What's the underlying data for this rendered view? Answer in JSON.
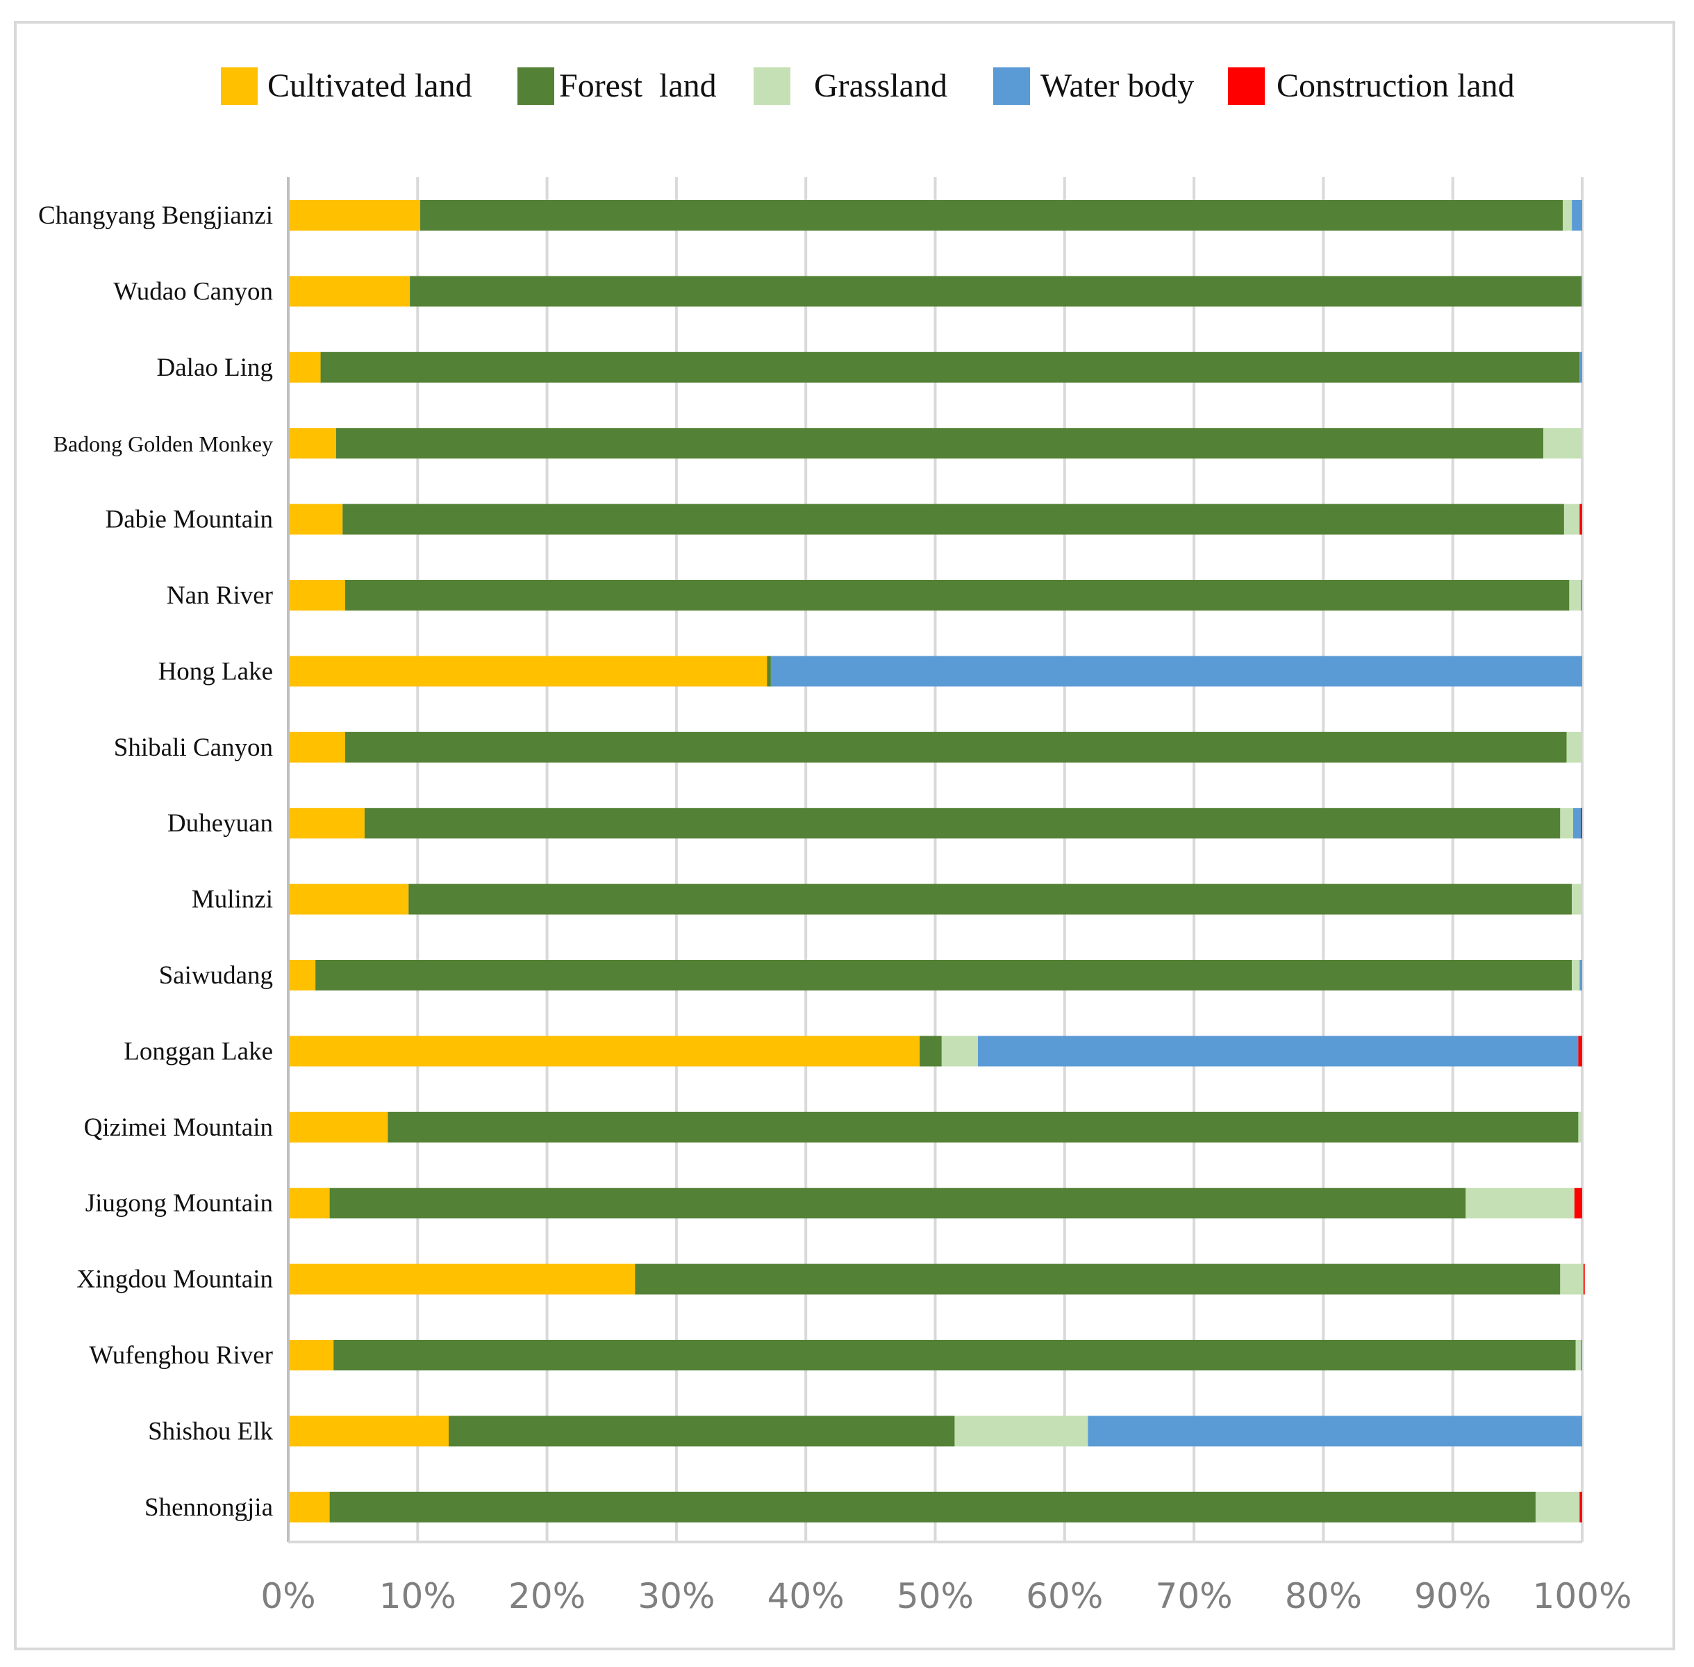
{
  "chart_data": {
    "type": "bar",
    "orientation": "horizontal",
    "stacked": true,
    "normalized": true,
    "title": "",
    "xlabel": "",
    "ylabel": "",
    "xlim": [
      0,
      100
    ],
    "x_ticks": [
      "0%",
      "10%",
      "20%",
      "30%",
      "40%",
      "50%",
      "60%",
      "70%",
      "80%",
      "90%",
      "100%"
    ],
    "grid": true,
    "legend_position": "top",
    "categories": [
      "Changyang Bengjianzi",
      "Wudao Canyon",
      "Dalao Ling",
      "Badong Golden Monkey",
      "Dabie Mountain",
      "Nan River",
      "Hong Lake",
      "Shibali Canyon",
      "Duheyuan",
      "Mulinzi",
      "Saiwudang",
      "Longgan Lake",
      "Qizimei Mountain",
      "Jiugong Mountain",
      "Xingdou Mountain",
      "Wufenghou River",
      "Shishou Elk",
      "Shennongjia"
    ],
    "series": [
      {
        "name": "Cultivated land",
        "color": "#ffc000",
        "values": [
          10.2,
          9.4,
          2.5,
          3.7,
          4.2,
          4.4,
          37.0,
          4.4,
          5.9,
          9.3,
          2.1,
          48.8,
          7.7,
          3.2,
          26.8,
          3.5,
          12.4,
          3.2
        ]
      },
      {
        "name": "Forest  land",
        "color": "#538135",
        "values": [
          88.3,
          90.5,
          97.3,
          93.3,
          94.4,
          94.6,
          0.3,
          94.4,
          92.4,
          89.9,
          97.1,
          1.7,
          92.0,
          87.8,
          71.5,
          96.0,
          39.1,
          93.2
        ]
      },
      {
        "name": "Grassland",
        "color": "#c5e0b4",
        "values": [
          0.7,
          0.0,
          0.0,
          3.0,
          1.2,
          0.9,
          0.0,
          1.2,
          1.0,
          0.8,
          0.6,
          2.8,
          0.3,
          8.4,
          1.8,
          0.4,
          10.3,
          3.4
        ]
      },
      {
        "name": "Water body",
        "color": "#5b9bd5",
        "values": [
          0.8,
          0.1,
          0.2,
          0.0,
          0.0,
          0.1,
          62.7,
          0.0,
          0.6,
          0.0,
          0.2,
          46.4,
          0.0,
          0.0,
          0.0,
          0.1,
          38.2,
          0.0
        ]
      },
      {
        "name": "Construction land",
        "color": "#ff0000",
        "values": [
          0.0,
          0.0,
          0.0,
          0.0,
          0.2,
          0.0,
          0.0,
          0.0,
          0.1,
          0.0,
          0.0,
          0.3,
          0.0,
          0.6,
          0.1,
          0.0,
          0.0,
          0.2
        ]
      }
    ]
  }
}
